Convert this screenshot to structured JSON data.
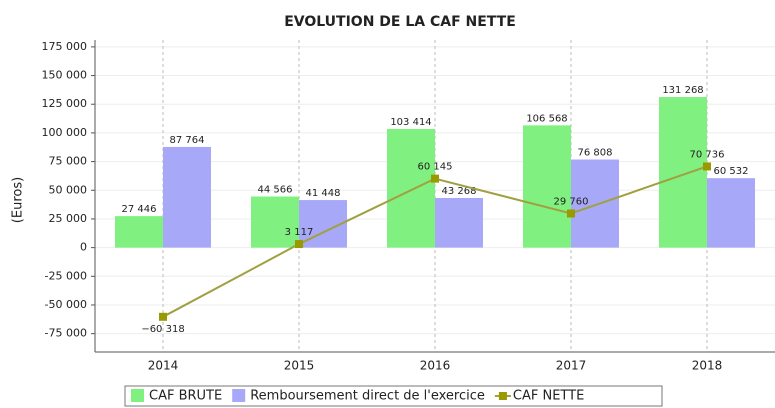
{
  "chart_data": {
    "type": "bar",
    "title": "EVOLUTION DE LA CAF NETTE",
    "y_label": "(Euros)",
    "categories": [
      "2014",
      "2015",
      "2016",
      "2017",
      "2018"
    ],
    "series": [
      {
        "name": "CAF BRUTE",
        "color": "#80f080",
        "values": [
          27446,
          44566,
          103414,
          106568,
          131268
        ],
        "value_labels": [
          "27 446",
          "44 566",
          "103 414",
          "106 568",
          "131 268"
        ]
      },
      {
        "name": "Remboursement direct de l'exercice",
        "color": "#a8a8f8",
        "values": [
          87764,
          41448,
          43268,
          76808,
          60532
        ],
        "value_labels": [
          "87 764",
          "41 448",
          "43 268",
          "76 808",
          "60 532"
        ]
      },
      {
        "name": "CAF NETTE",
        "type": "line",
        "color": "#a0a040",
        "values": [
          -60318,
          3117,
          60145,
          29760,
          70736
        ],
        "value_labels": [
          "−60 318",
          "3 117",
          "60 145",
          "29 760",
          "70 736"
        ]
      }
    ],
    "ylim": [
      -91000,
      181000
    ],
    "yticks": [
      {
        "value": -75000,
        "label": "-75 000"
      },
      {
        "value": -50000,
        "label": "-50 000"
      },
      {
        "value": -25000,
        "label": "-25 000"
      },
      0,
      {
        "value": 25000,
        "label": "25 000"
      },
      {
        "value": 50000,
        "label": "50 000"
      },
      {
        "value": 75000,
        "label": "75 000"
      },
      {
        "value": 100000,
        "label": "100 000"
      },
      {
        "value": 125000,
        "label": "125 000"
      },
      {
        "value": 150000,
        "label": "150 000"
      },
      {
        "value": 175000,
        "label": "175 000"
      }
    ],
    "grid": true,
    "legend": "bottom"
  }
}
